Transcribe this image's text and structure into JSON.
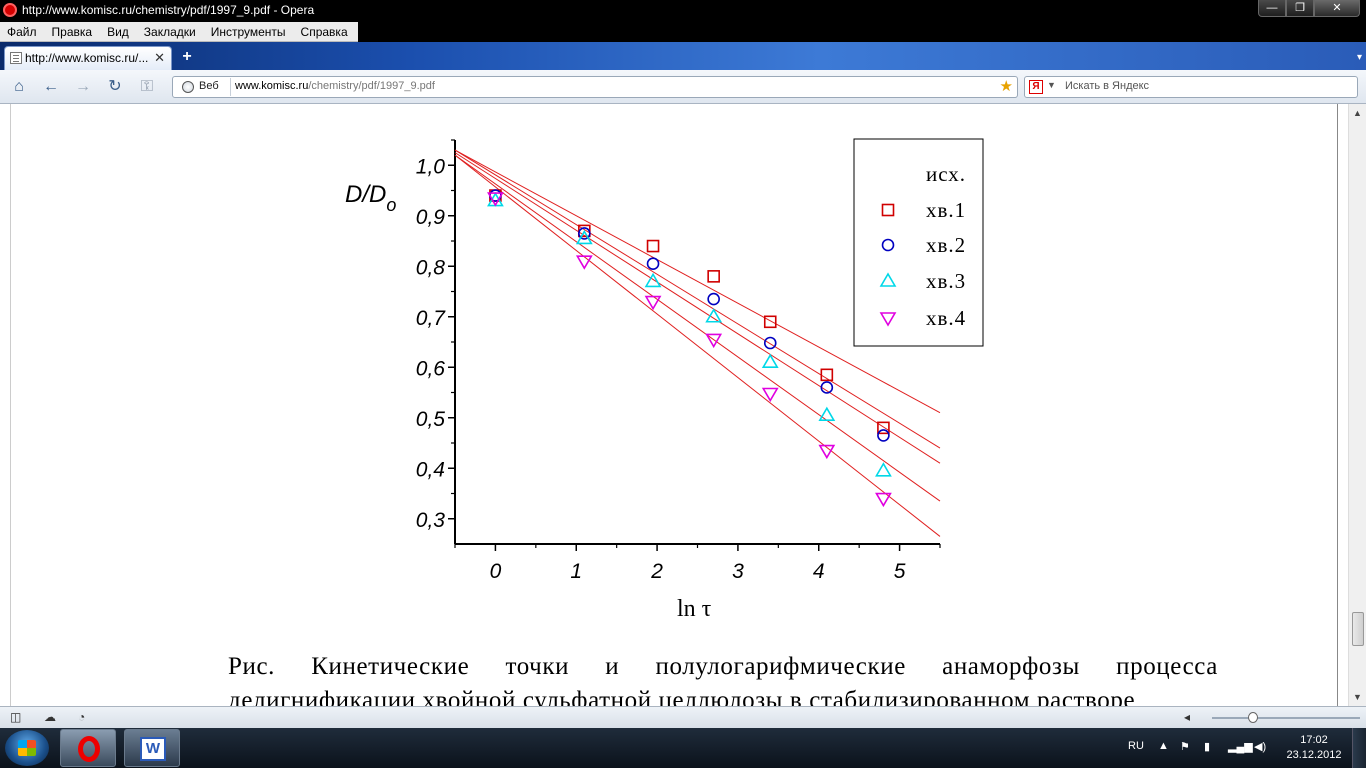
{
  "window": {
    "title": "http://www.komisc.ru/chemistry/pdf/1997_9.pdf - Opera",
    "min_label": "—",
    "max_label": "❐",
    "close_label": "✕"
  },
  "menu": {
    "items": [
      "Файл",
      "Правка",
      "Вид",
      "Закладки",
      "Инструменты",
      "Справка"
    ]
  },
  "tabs": [
    {
      "label": "http://www.komisc.ru/...",
      "close": "✕"
    }
  ],
  "newtab_label": "+",
  "nav": {
    "web_button": "Веб",
    "url_host": "www.komisc.ru",
    "url_path": "/chemistry/pdf/1997_9.pdf",
    "search_placeholder": "Искать в Яндекс",
    "search_engine_icon": "Я"
  },
  "chart_data": {
    "type": "scatter",
    "ylabel_main": "D/D",
    "ylabel_sub": "o",
    "xlabel": "ln τ",
    "xlim": [
      -0.5,
      5.5
    ],
    "ylim": [
      0.25,
      1.05
    ],
    "x_ticks": [
      "0",
      "1",
      "2",
      "3",
      "4",
      "5"
    ],
    "y_ticks": [
      "0,3",
      "0,4",
      "0,5",
      "0,6",
      "0,7",
      "0,8",
      "0,9",
      "1,0"
    ],
    "legend_position": "top-right",
    "legend": [
      "исх.",
      "хв.1",
      "хв.2",
      "хв.3",
      "хв.4"
    ],
    "series": [
      {
        "name": "хв.1",
        "marker": "square",
        "color": "#d00000",
        "x": [
          0,
          1.1,
          1.95,
          2.7,
          3.4,
          4.1,
          4.8
        ],
        "y": [
          0.94,
          0.87,
          0.84,
          0.78,
          0.69,
          0.585,
          0.48
        ]
      },
      {
        "name": "хв.2",
        "marker": "circle",
        "color": "#0000c0",
        "x": [
          0,
          1.1,
          1.95,
          2.7,
          3.4,
          4.1,
          4.8
        ],
        "y": [
          0.94,
          0.865,
          0.805,
          0.735,
          0.648,
          0.56,
          0.465
        ]
      },
      {
        "name": "хв.3",
        "marker": "triangle-up",
        "color": "#00d8e8",
        "x": [
          0,
          1.1,
          1.95,
          2.7,
          3.4,
          4.1,
          4.8
        ],
        "y": [
          0.93,
          0.855,
          0.77,
          0.7,
          0.61,
          0.505,
          0.395
        ]
      },
      {
        "name": "хв.4",
        "marker": "triangle-down",
        "color": "#e000e0",
        "x": [
          0,
          1.1,
          1.95,
          2.7,
          3.4,
          4.1,
          4.8
        ],
        "y": [
          0.935,
          0.81,
          0.73,
          0.655,
          0.548,
          0.435,
          0.34
        ]
      }
    ],
    "fit_lines": [
      {
        "x": [
          -0.5,
          5.5
        ],
        "y": [
          1.03,
          0.51
        ]
      },
      {
        "x": [
          -0.5,
          5.5
        ],
        "y": [
          1.03,
          0.44
        ]
      },
      {
        "x": [
          -0.5,
          5.5
        ],
        "y": [
          1.025,
          0.41
        ]
      },
      {
        "x": [
          -0.5,
          5.5
        ],
        "y": [
          1.02,
          0.335
        ]
      },
      {
        "x": [
          -0.5,
          5.5
        ],
        "y": [
          1.02,
          0.265
        ]
      }
    ],
    "line_color": "#e02020"
  },
  "caption": {
    "line1": "Рис. Кинетические точки и полулогарифмические анаморфозы процесса",
    "line2": "делигнификации хвойной сульфатной целлюлозы в стабилизированном растворе"
  },
  "status": {
    "panel_icon": "◫",
    "cloud_icon": "☁",
    "speed_icon": "◔",
    "zoom_arrow": "◂"
  },
  "taskbar": {
    "lang": "RU",
    "time": "17:02",
    "date": "23.12.2012",
    "word_label": "W"
  }
}
